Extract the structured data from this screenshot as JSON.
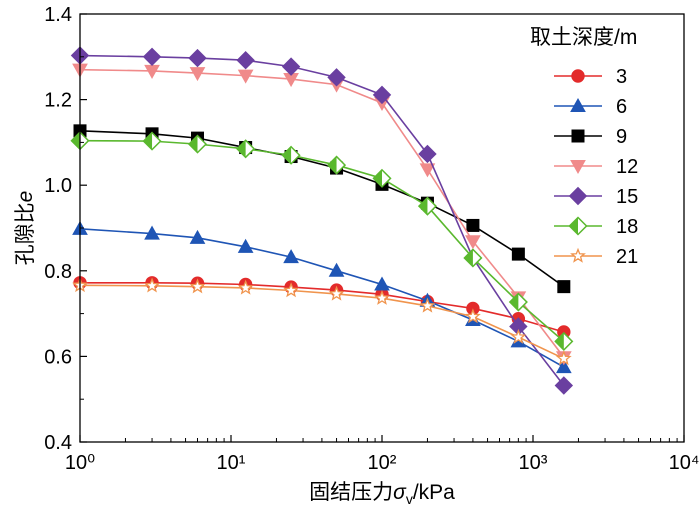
{
  "chart_data": {
    "type": "line",
    "xscale": "log",
    "xlim": [
      1,
      10000
    ],
    "ylim": [
      0.4,
      1.4
    ],
    "xlabel": "固结压力σv/kPa",
    "ylabel": "孔隙比e",
    "legend_title": "取土深度/m",
    "legend_position": "top-right",
    "grid": false,
    "x_tick_labels": [
      "10⁰",
      "10¹",
      "10²",
      "10³",
      "10⁴"
    ],
    "y_tick_labels": [
      "0.4",
      "0.6",
      "0.8",
      "1.0",
      "1.2",
      "1.4"
    ],
    "x": [
      1,
      3,
      6,
      12.5,
      25,
      50,
      100,
      200,
      400,
      800,
      1600
    ],
    "series": [
      {
        "name": "3",
        "color": "#e32b2b",
        "marker": "circle",
        "values": [
          0.772,
          0.772,
          0.771,
          0.768,
          0.762,
          0.755,
          0.745,
          0.728,
          0.712,
          0.688,
          0.657
        ]
      },
      {
        "name": "6",
        "color": "#1f55b5",
        "marker": "triangle-up",
        "values": [
          0.898,
          0.887,
          0.877,
          0.856,
          0.832,
          0.8,
          0.768,
          0.73,
          0.685,
          0.635,
          0.575
        ]
      },
      {
        "name": "9",
        "color": "#000000",
        "marker": "square",
        "values": [
          1.127,
          1.12,
          1.11,
          1.088,
          1.067,
          1.04,
          1.002,
          0.958,
          0.906,
          0.839,
          0.763
        ]
      },
      {
        "name": "12",
        "color": "#f08a8a",
        "marker": "triangle-down",
        "values": [
          1.27,
          1.267,
          1.262,
          1.256,
          1.248,
          1.235,
          1.192,
          1.037,
          0.869,
          0.738,
          0.598
        ]
      },
      {
        "name": "15",
        "color": "#6a3fa0",
        "marker": "diamond",
        "values": [
          1.303,
          1.3,
          1.297,
          1.292,
          1.277,
          1.252,
          1.211,
          1.073,
          0.83,
          0.67,
          0.532
        ]
      },
      {
        "name": "18",
        "color": "#5ab82e",
        "marker": "half-diamond",
        "values": [
          1.104,
          1.103,
          1.096,
          1.085,
          1.07,
          1.047,
          1.016,
          0.951,
          0.83,
          0.727,
          0.635
        ]
      },
      {
        "name": "21",
        "color": "#f0944d",
        "marker": "star",
        "values": [
          0.766,
          0.765,
          0.763,
          0.76,
          0.754,
          0.746,
          0.736,
          0.718,
          0.693,
          0.645,
          0.595
        ]
      }
    ]
  }
}
